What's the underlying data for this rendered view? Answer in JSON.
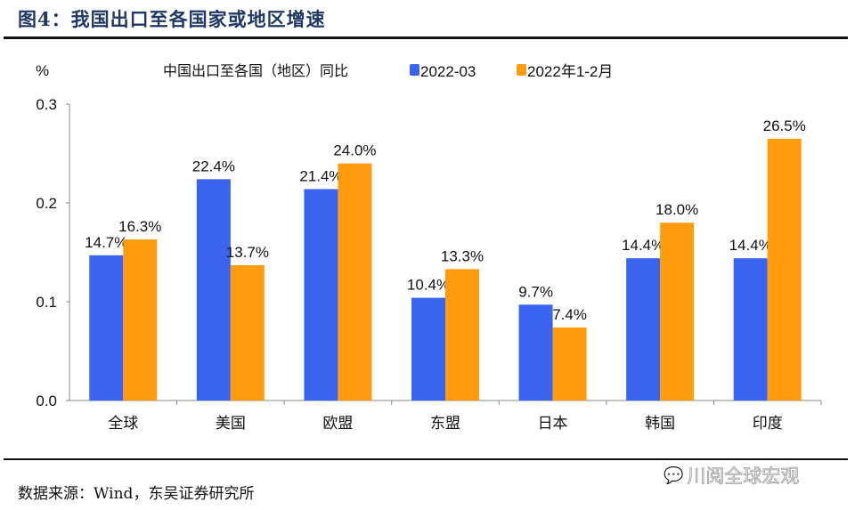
{
  "header": {
    "title": "图4：我国出口至各国家或地区增速"
  },
  "footer": {
    "source": "数据来源：Wind，东吴证券研究所",
    "watermark": "川阅全球宏观"
  },
  "chart_data": {
    "type": "bar",
    "title": "中国出口至各国（地区）同比",
    "ylabel": "%",
    "xlabel": "",
    "ylim": [
      0,
      0.3
    ],
    "yticks": [
      "0.0",
      "0.1",
      "0.2",
      "0.3"
    ],
    "ytick_values": [
      0,
      0.1,
      0.2,
      0.3
    ],
    "grid": false,
    "legend_position": "top",
    "categories": [
      "全球",
      "美国",
      "欧盟",
      "东盟",
      "日本",
      "韩国",
      "印度"
    ],
    "series": [
      {
        "name": "2022-03",
        "color": "#3a63f0",
        "values": [
          0.147,
          0.224,
          0.214,
          0.104,
          0.097,
          0.144,
          0.144
        ],
        "labels": [
          "14.7%",
          "22.4%",
          "21.4%",
          "10.4%",
          "9.7%",
          "14.4%",
          "14.4%"
        ]
      },
      {
        "name": "2022年1-2月",
        "color": "#ff9b0f",
        "values": [
          0.163,
          0.137,
          0.24,
          0.133,
          0.074,
          0.18,
          0.265
        ],
        "labels": [
          "16.3%",
          "13.7%",
          "24.0%",
          "13.3%",
          "7.4%",
          "18.0%",
          "26.5%"
        ]
      }
    ]
  }
}
